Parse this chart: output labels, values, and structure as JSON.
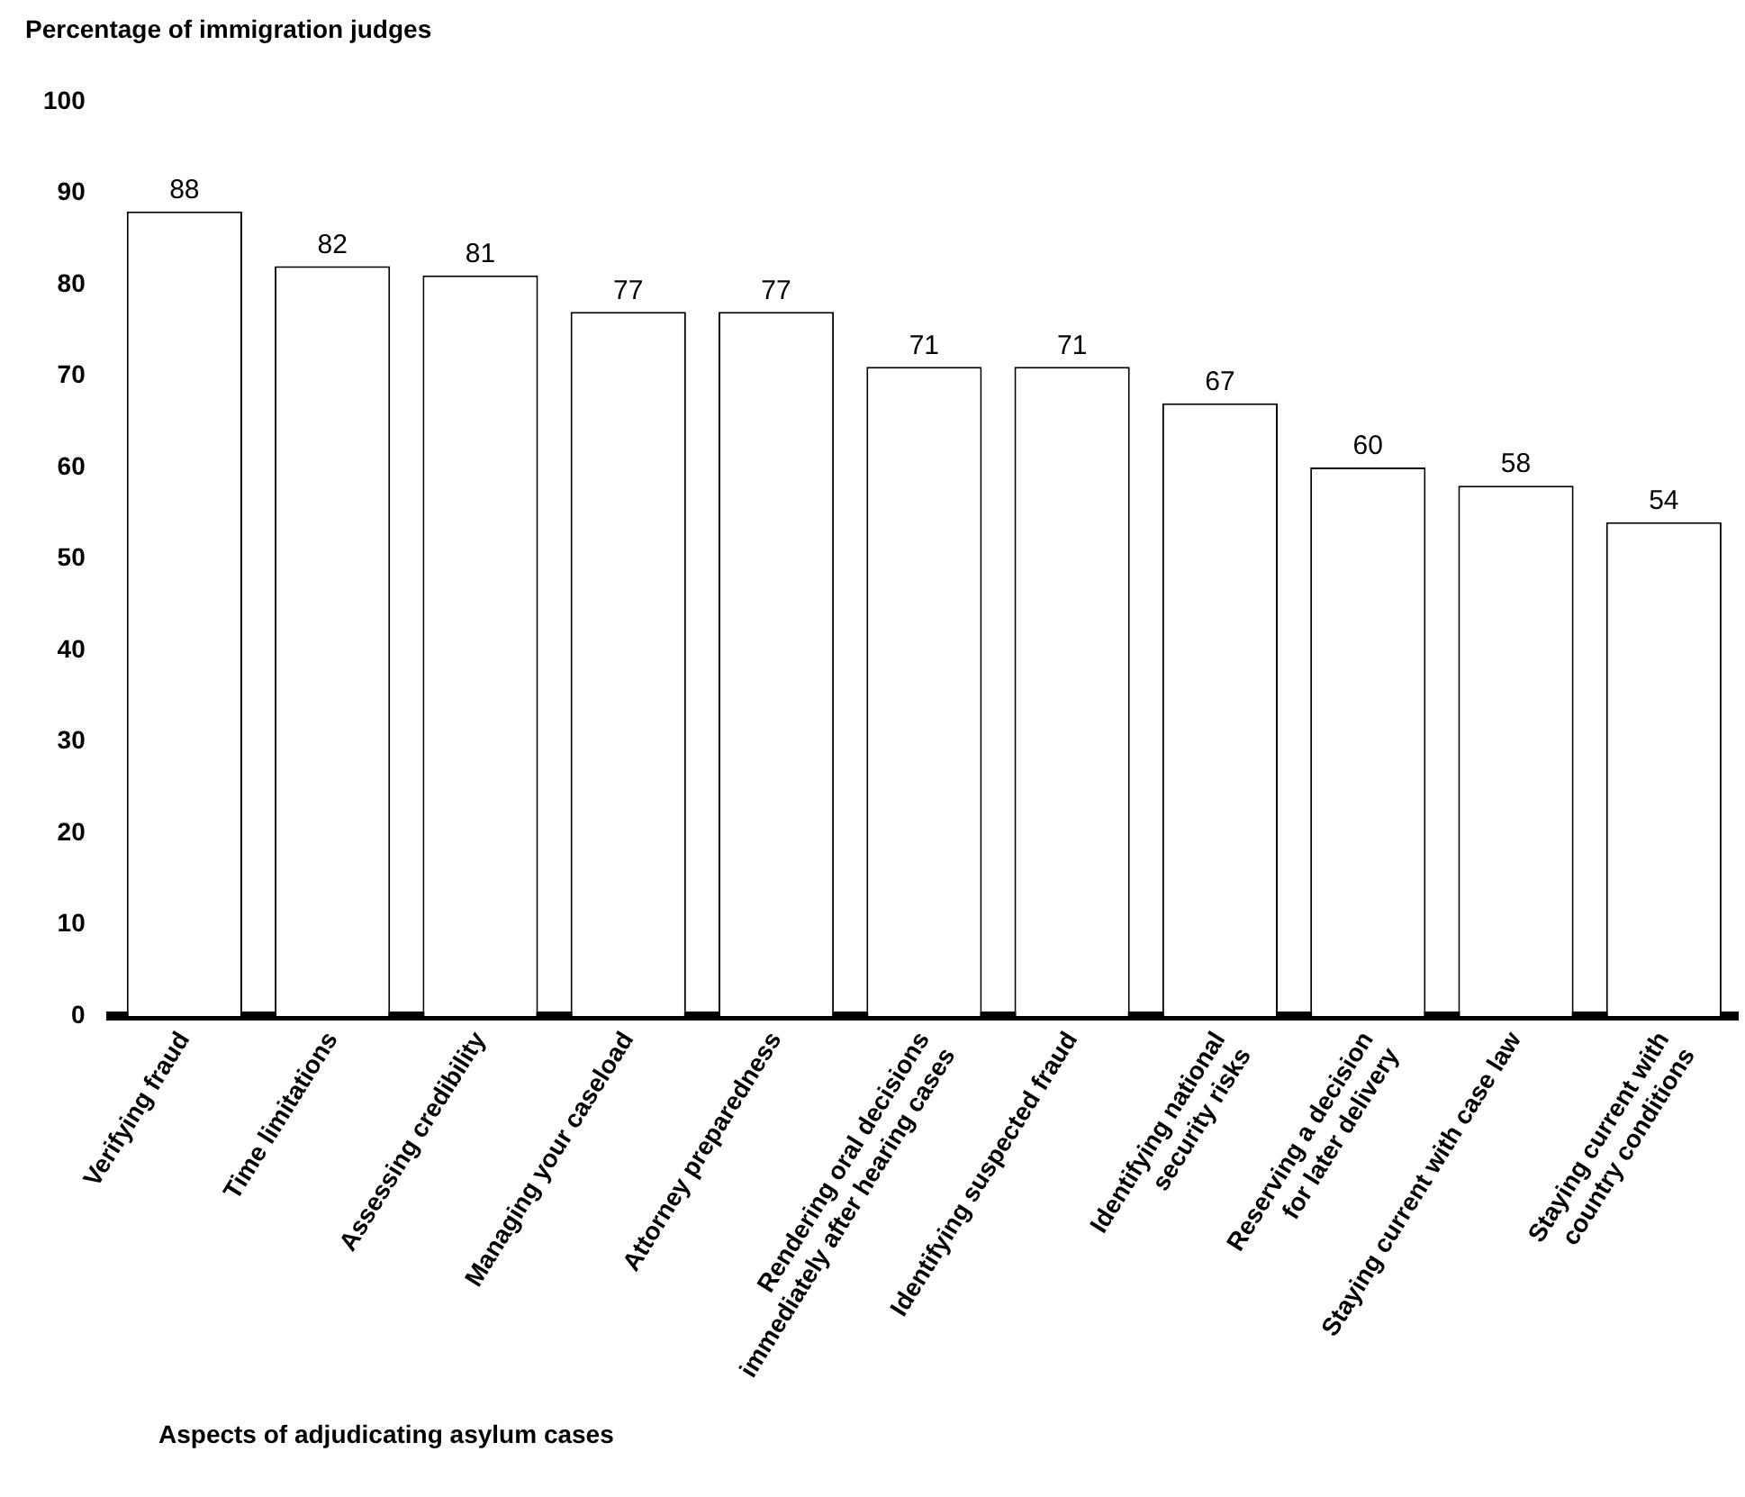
{
  "chart_data": {
    "type": "bar",
    "ylabel": "Percentage of immigration judges",
    "xlabel": "Aspects of adjudicating asylum cases",
    "categories": [
      "Verifying fraud",
      "Time limitations",
      "Assessing credibility",
      "Managing your caseload",
      "Attorney preparedness",
      "Rendering oral decisions\nimmediately after hearing cases",
      "Identifying suspected fraud",
      "Identifying national\nsecurity risks",
      "Reserving a decision\nfor later delivery",
      "Staying current with case law",
      "Staying current with\ncountry conditions"
    ],
    "values": [
      88,
      82,
      81,
      77,
      77,
      71,
      71,
      67,
      60,
      58,
      54
    ],
    "color": "#ffffff",
    "ylim": [
      0,
      100
    ],
    "yticks": [
      0,
      10,
      20,
      30,
      40,
      50,
      60,
      70,
      80,
      90,
      100
    ],
    "data_labels": true,
    "legend": false
  }
}
